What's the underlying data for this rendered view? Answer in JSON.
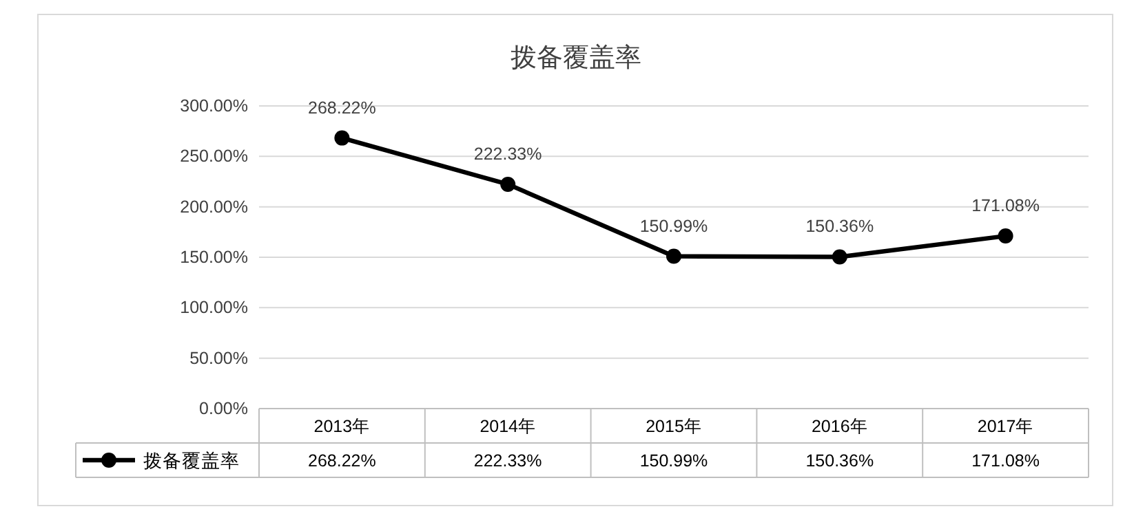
{
  "chart_data": {
    "type": "line",
    "title": "拨备覆盖率",
    "categories": [
      "2013年",
      "2014年",
      "2015年",
      "2016年",
      "2017年"
    ],
    "series": [
      {
        "name": "拨备覆盖率",
        "color": "#000000",
        "values": [
          268.22,
          222.33,
          150.99,
          150.36,
          171.08
        ],
        "value_labels": [
          "268.22%",
          "222.33%",
          "150.99%",
          "150.36%",
          "171.08%"
        ]
      }
    ],
    "ylim": [
      0,
      300
    ],
    "yticks": [
      {
        "value": 0,
        "label": "0.00%"
      },
      {
        "value": 50,
        "label": "50.00%"
      },
      {
        "value": 100,
        "label": "100.00%"
      },
      {
        "value": 150,
        "label": "150.00%"
      },
      {
        "value": 200,
        "label": "200.00%"
      },
      {
        "value": 250,
        "label": "250.00%"
      },
      {
        "value": 300,
        "label": "300.00%"
      }
    ],
    "grid": "y",
    "legend": "bottom",
    "marker": "circle",
    "line_style": "solid"
  }
}
